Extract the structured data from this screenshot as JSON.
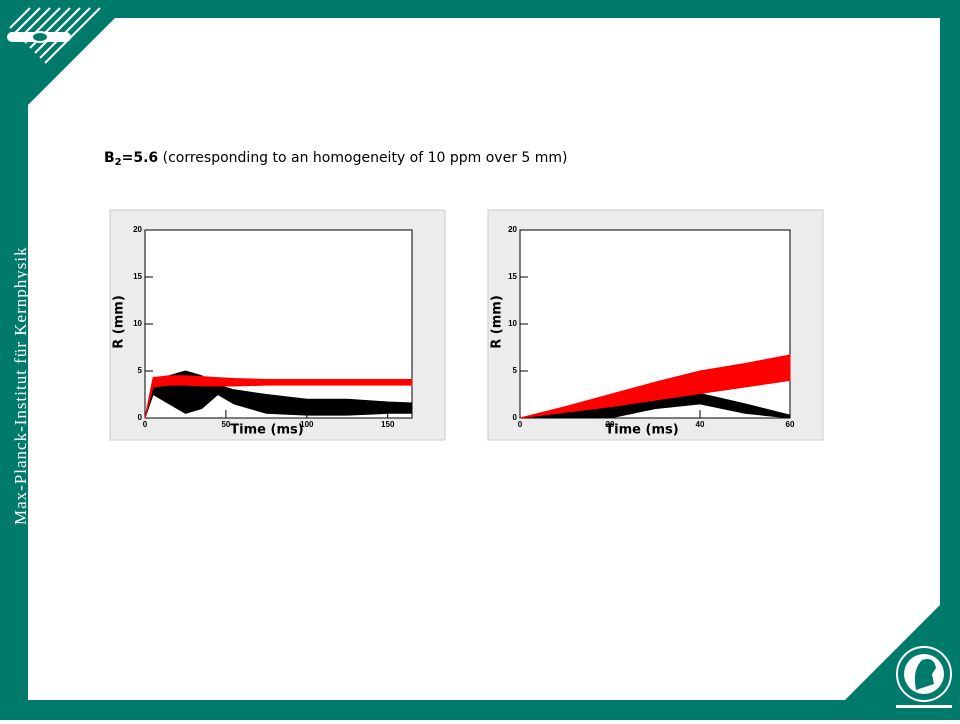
{
  "sidebar": {
    "institute": "Max-Planck-Institut für Kernphysik"
  },
  "header": {
    "title_symbol": "B",
    "title_subscript": "2",
    "title_value": "=5.6",
    "title_note": " (corresponding to an homogeneity of 10 ppm over 5 mm)"
  },
  "chart_data": [
    {
      "type": "band",
      "xlabel": "Time (ms)",
      "ylabel": "R (mm)",
      "x": [
        0,
        5,
        15,
        25,
        35,
        45,
        55,
        75,
        100,
        125,
        150,
        165
      ],
      "xlim": [
        0,
        165
      ],
      "xticks": [
        0,
        50,
        100,
        150
      ],
      "ylim": [
        0,
        20
      ],
      "yticks": [
        0,
        5,
        10,
        15,
        20
      ],
      "series": [
        {
          "color": "#000000",
          "values": [
            0,
            3.5,
            4.5,
            5,
            4.5,
            3.5,
            3,
            2.5,
            2,
            2,
            1.7,
            1.6
          ],
          "lower": [
            0,
            2.5,
            1.5,
            0.5,
            1,
            2.5,
            1.5,
            0.5,
            0.3,
            0.3,
            0.5,
            0.5
          ]
        },
        {
          "color": "#ff0000",
          "values": [
            0,
            4.3,
            4.5,
            4.5,
            4.4,
            4.3,
            4.2,
            4.1,
            4.1,
            4.1,
            4.1,
            4.1
          ],
          "lower": [
            0,
            3.3,
            3.5,
            3.5,
            3.4,
            3.4,
            3.4,
            3.5,
            3.5,
            3.5,
            3.5,
            3.5
          ]
        }
      ]
    },
    {
      "type": "band",
      "xlabel": "Time (ms)",
      "ylabel": "R (mm)",
      "x": [
        0,
        10,
        20,
        30,
        40,
        50,
        60
      ],
      "xlim": [
        0,
        60
      ],
      "xticks": [
        0,
        20,
        40,
        60
      ],
      "ylim": [
        0,
        20
      ],
      "yticks": [
        0,
        5,
        10,
        15,
        20
      ],
      "series": [
        {
          "color": "#000000",
          "values": [
            0,
            0.6,
            1.2,
            1.9,
            2.6,
            1.5,
            0.3
          ],
          "lower": [
            0,
            0.1,
            0,
            1,
            1.5,
            0.5,
            0
          ]
        },
        {
          "color": "#ff0000",
          "values": [
            0,
            1.2,
            2.5,
            3.8,
            5,
            5.8,
            6.7
          ],
          "lower": [
            0,
            0.6,
            1.2,
            1.9,
            2.6,
            3.3,
            4
          ]
        }
      ]
    }
  ]
}
